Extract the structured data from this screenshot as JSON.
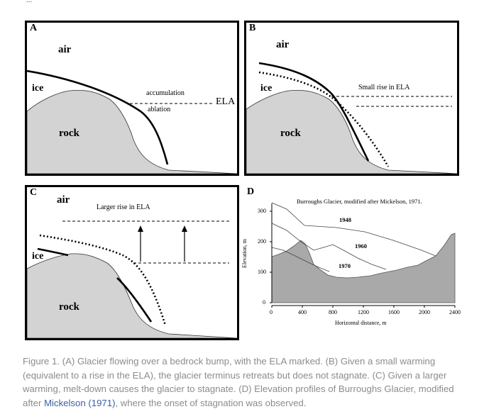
{
  "top_fragment": "...",
  "panelA": {
    "letter": "A",
    "air": "air",
    "ice": "ice",
    "rock": "rock",
    "accumulation": "accumulation",
    "ablation": "ablation",
    "ela": "ELA"
  },
  "panelB": {
    "letter": "B",
    "air": "air",
    "ice": "ice",
    "rock": "rock",
    "note": "Small rise in ELA"
  },
  "panelC": {
    "letter": "C",
    "air": "air",
    "ice": "ice",
    "rock": "rock",
    "note": "Larger rise in ELA"
  },
  "panelD": {
    "letter": "D",
    "title": "Burroughs Glacier, modified after Mickelson, 1971.",
    "ylabel": "Elevation, m",
    "xlabel": "Horizontal distance, m",
    "xticks": [
      "0",
      "400",
      "800",
      "1200",
      "1600",
      "2000",
      "2400"
    ],
    "yticks": [
      "0",
      "100",
      "200",
      "300"
    ],
    "profile_labels": [
      "1948",
      "1960",
      "1970"
    ]
  },
  "caption": {
    "before": "Figure 1. (A) Glacier flowing over a bedrock bump, with the ELA marked. (B) Given a small warming (equivalent to a rise in the ELA), the glacier terminus retreats but does not stagnate. (C) Given a larger warming, melt-down causes the glacier to stagnate. (D) Elevation profiles of Burroughs Glacier, modified after ",
    "link": "Mickelson (1971)",
    "after": ", where the onset of stagnation was observed."
  },
  "colors": {
    "rock": "#d3d3d3",
    "line": "#000000",
    "caption": "#8c8c8c",
    "link": "#3a5fa8",
    "terrain": "#a9a9a9"
  }
}
